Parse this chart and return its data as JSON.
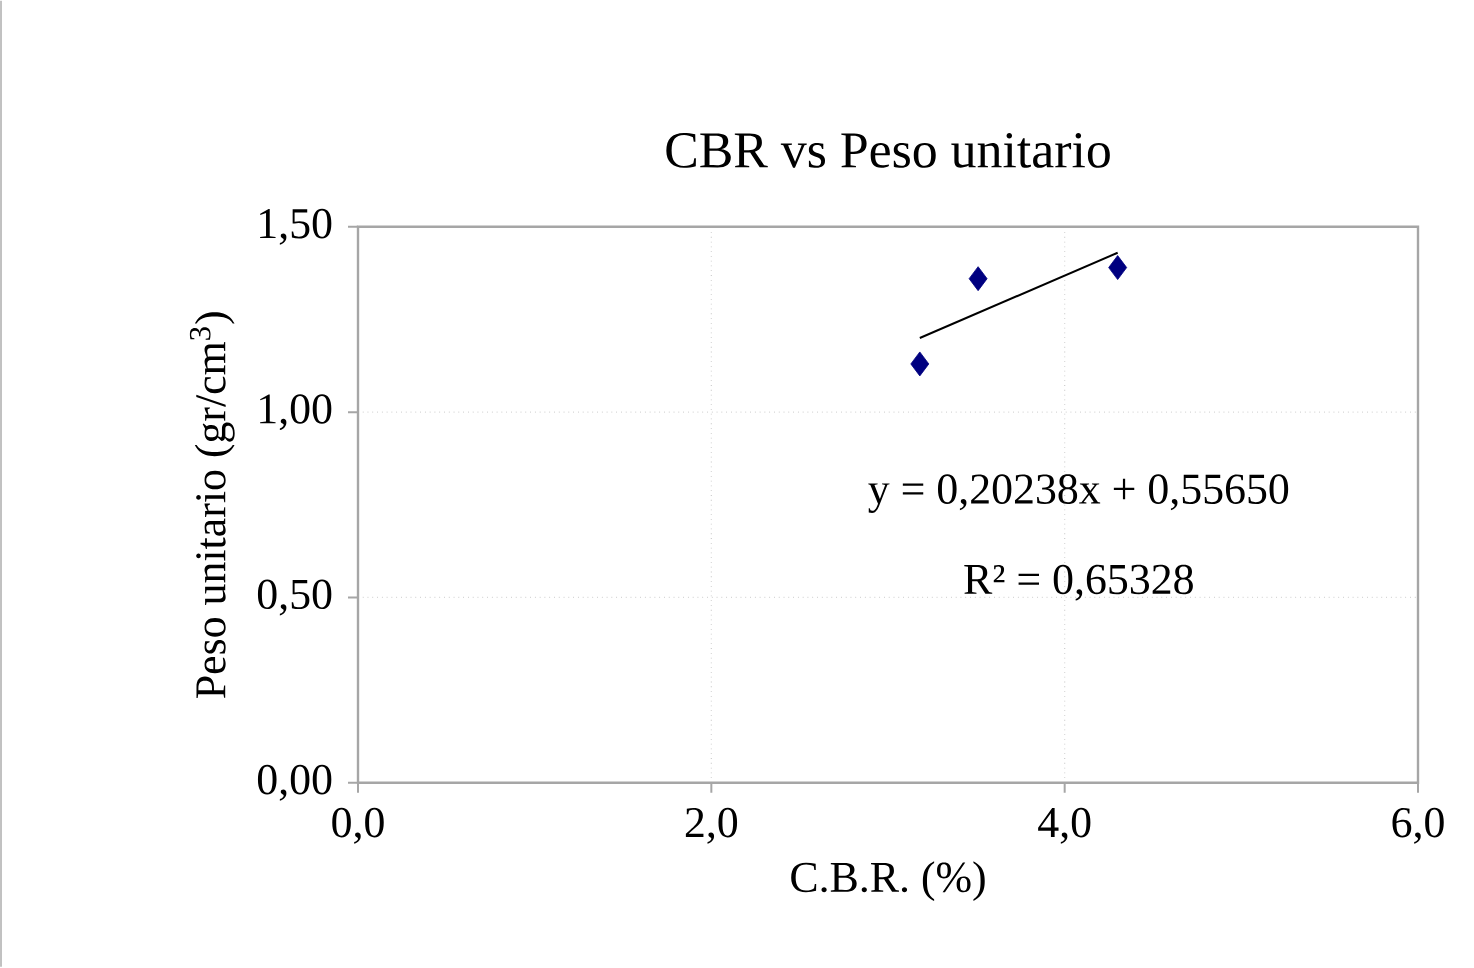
{
  "chart_data": {
    "type": "scatter",
    "title": "CBR vs Peso unitario",
    "xlabel": "C.B.R. (%)",
    "ylabel": "Peso unitario (gr/cm$^{3}$)",
    "series": [
      {
        "color": "#000080",
        "marker": "diamond",
        "x": [
          3.18,
          3.51,
          4.3
        ],
        "values": [
          1.13,
          1.36,
          1.39
        ]
      },
      {
        "type": "line",
        "color": "#000000",
        "marker": "none",
        "line_style": "solid",
        "x": [
          3.18,
          4.3
        ],
        "values": [
          1.2,
          1.43
        ]
      }
    ],
    "annotations": [
      "y = 0,20238x + 0,55650",
      "R² = 0,65328"
    ],
    "xlim": [
      0,
      6
    ],
    "ylim": [
      0,
      1.5
    ],
    "xticks": [
      {
        "value": 0,
        "label": "0,0"
      },
      {
        "value": 2,
        "label": "2,0"
      },
      {
        "value": 4,
        "label": "4,0"
      },
      {
        "value": 6,
        "label": "6,0"
      }
    ],
    "yticks": [
      {
        "value": 0,
        "label": "0,00"
      },
      {
        "value": 0.5,
        "label": "0,50"
      },
      {
        "value": 1,
        "label": "1,00"
      },
      {
        "value": 1.5,
        "label": "1,50"
      }
    ],
    "grid": true
  }
}
